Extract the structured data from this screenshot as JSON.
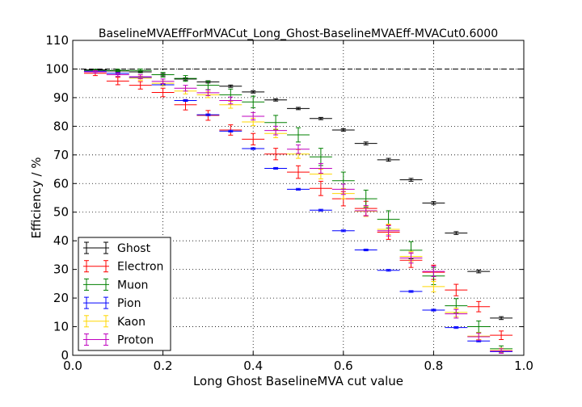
{
  "chart_data": {
    "type": "scatter",
    "title": "BaselineMVAEffForMVACut_Long_Ghost-BaselineMVAEff-MVACut0.6000",
    "xlabel": "Long Ghost BaselineMVA cut value",
    "ylabel": "Efficiency / %",
    "xlim": [
      0.0,
      1.0
    ],
    "ylim": [
      0,
      110
    ],
    "xticks": [
      "0.0",
      "0.2",
      "0.4",
      "0.6",
      "0.8",
      "1.0"
    ],
    "yticks": [
      "0",
      "10",
      "20",
      "30",
      "40",
      "50",
      "60",
      "70",
      "80",
      "90",
      "100",
      "110"
    ],
    "grid": true,
    "reference_line": 100,
    "legend_position": "lower-left",
    "x": [
      0.05,
      0.1,
      0.15,
      0.2,
      0.25,
      0.3,
      0.35,
      0.4,
      0.45,
      0.5,
      0.55,
      0.6,
      0.65,
      0.7,
      0.75,
      0.8,
      0.85,
      0.9,
      0.95
    ],
    "xerr": 0.025,
    "series": [
      {
        "name": "Ghost",
        "color": "#000000",
        "values": [
          99.7,
          99.3,
          99.0,
          98.0,
          96.5,
          95.5,
          94.0,
          92.0,
          89.2,
          86.2,
          82.7,
          78.7,
          74.0,
          68.3,
          61.3,
          53.2,
          42.7,
          29.3,
          13.0
        ],
        "errors": [
          0.2,
          0.3,
          0.3,
          0.4,
          0.4,
          0.4,
          0.4,
          0.4,
          0.4,
          0.4,
          0.4,
          0.4,
          0.5,
          0.5,
          0.5,
          0.5,
          0.5,
          0.5,
          0.5
        ]
      },
      {
        "name": "Electron",
        "color": "#ff0000",
        "values": [
          98.5,
          95.8,
          94.3,
          91.8,
          87.5,
          83.8,
          78.7,
          75.5,
          70.3,
          64.0,
          58.3,
          54.7,
          51.3,
          43.0,
          33.2,
          29.0,
          22.8,
          17.0,
          7.0
        ],
        "errors": [
          0.8,
          1.3,
          1.3,
          1.5,
          1.8,
          1.7,
          1.8,
          2.0,
          2.0,
          2.2,
          2.5,
          2.5,
          2.5,
          2.5,
          2.5,
          2.5,
          2.0,
          1.8,
          1.5
        ]
      },
      {
        "name": "Muon",
        "color": "#008000",
        "values": [
          99.5,
          99.5,
          99.5,
          98.0,
          96.7,
          94.3,
          91.0,
          88.5,
          81.3,
          77.0,
          69.3,
          61.0,
          54.7,
          47.5,
          36.7,
          27.7,
          17.3,
          10.0,
          2.3
        ],
        "errors": [
          0.3,
          0.4,
          0.5,
          0.8,
          1.0,
          1.5,
          2.0,
          2.0,
          2.5,
          2.5,
          3.0,
          3.0,
          3.0,
          3.0,
          3.0,
          3.0,
          2.5,
          2.0,
          1.0
        ]
      },
      {
        "name": "Pion",
        "color": "#0000ff",
        "values": [
          99.2,
          98.5,
          97.0,
          94.5,
          89.0,
          84.0,
          78.3,
          72.2,
          65.3,
          58.0,
          50.7,
          43.5,
          36.8,
          29.7,
          22.3,
          15.8,
          9.7,
          5.0,
          1.3
        ],
        "errors": [
          0.2,
          0.3,
          0.3,
          0.3,
          0.3,
          0.3,
          0.3,
          0.3,
          0.3,
          0.3,
          0.3,
          0.3,
          0.3,
          0.3,
          0.3,
          0.3,
          0.3,
          0.3,
          0.3
        ]
      },
      {
        "name": "Kaon",
        "color": "#ffd700",
        "values": [
          99.0,
          98.0,
          96.8,
          95.0,
          92.3,
          91.0,
          87.5,
          81.5,
          77.5,
          70.3,
          63.3,
          56.5,
          50.3,
          44.0,
          34.5,
          24.0,
          15.0,
          6.7,
          1.7
        ],
        "errors": [
          0.4,
          0.6,
          0.7,
          0.8,
          1.0,
          1.0,
          1.2,
          1.3,
          1.5,
          1.5,
          1.7,
          1.8,
          1.8,
          1.8,
          1.8,
          1.8,
          1.5,
          1.2,
          0.8
        ]
      },
      {
        "name": "Proton",
        "color": "#bf00bf",
        "values": [
          99.0,
          98.0,
          97.3,
          95.7,
          93.3,
          91.7,
          89.0,
          83.5,
          78.5,
          72.0,
          65.3,
          58.0,
          50.5,
          43.5,
          34.0,
          29.3,
          14.5,
          6.5,
          1.5
        ],
        "errors": [
          0.4,
          0.6,
          0.7,
          0.8,
          1.0,
          1.0,
          1.2,
          1.3,
          1.5,
          1.5,
          1.7,
          1.8,
          1.8,
          1.8,
          1.8,
          1.8,
          1.5,
          1.2,
          0.8
        ]
      }
    ]
  }
}
